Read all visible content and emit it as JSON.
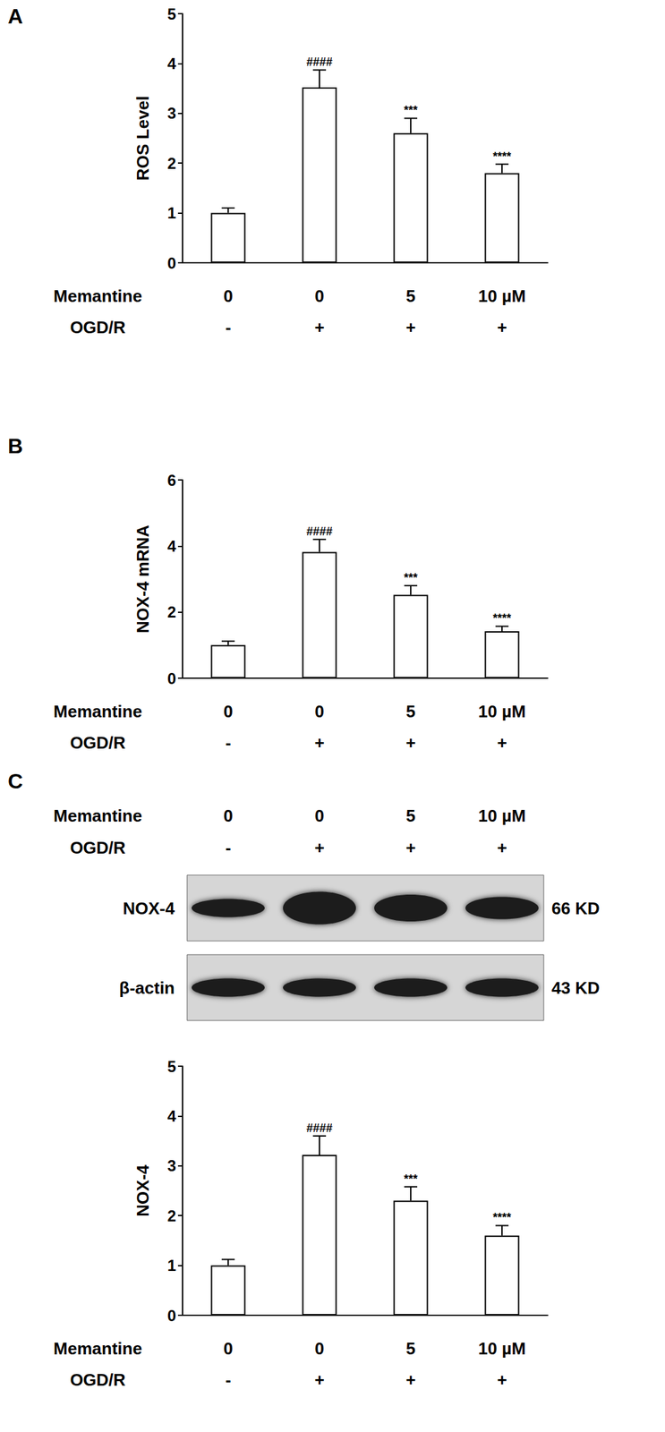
{
  "chart_data": [
    {
      "type": "bar",
      "panel": "A",
      "y_label": "ROS Level",
      "x_rows": [
        {
          "label": "Memantine",
          "values": [
            "0",
            "0",
            "5",
            "10 µM"
          ]
        },
        {
          "label": "OGD/R",
          "values": [
            "-",
            "+",
            "+",
            "+"
          ]
        }
      ],
      "values": [
        1.0,
        3.52,
        2.6,
        1.8
      ],
      "errors": [
        0.1,
        0.35,
        0.3,
        0.18
      ],
      "annotations": [
        null,
        "####",
        "***",
        "****"
      ],
      "color": "#ffffff",
      "ylim": [
        0,
        5
      ],
      "yticks": [
        0,
        1,
        2,
        3,
        4,
        5
      ],
      "grid": false
    },
    {
      "type": "bar",
      "panel": "B",
      "y_label": "NOX-4 mRNA",
      "x_rows": [
        {
          "label": "Memantine",
          "values": [
            "0",
            "0",
            "5",
            "10 µM"
          ]
        },
        {
          "label": "OGD/R",
          "values": [
            "-",
            "+",
            "+",
            "+"
          ]
        }
      ],
      "values": [
        1.0,
        3.82,
        2.52,
        1.42
      ],
      "errors": [
        0.12,
        0.38,
        0.28,
        0.15
      ],
      "annotations": [
        null,
        "####",
        "***",
        "****"
      ],
      "color": "#ffffff",
      "ylim": [
        0,
        6
      ],
      "yticks": [
        0,
        2,
        4,
        6
      ],
      "grid": false
    },
    {
      "type": "bar",
      "panel": "C",
      "y_label": "NOX-4",
      "x_rows": [
        {
          "label": "Memantine",
          "values": [
            "0",
            "0",
            "5",
            "10 µM"
          ]
        },
        {
          "label": "OGD/R",
          "values": [
            "-",
            "+",
            "+",
            "+"
          ]
        }
      ],
      "values": [
        1.0,
        3.22,
        2.3,
        1.6
      ],
      "errors": [
        0.12,
        0.38,
        0.28,
        0.2
      ],
      "annotations": [
        null,
        "####",
        "***",
        "****"
      ],
      "color": "#ffffff",
      "ylim": [
        0,
        5
      ],
      "yticks": [
        0,
        1,
        2,
        3,
        4,
        5
      ],
      "grid": false,
      "blot": {
        "lanes": [
          {
            "label": "NOX-4",
            "mw": "66 KD"
          },
          {
            "label": "β-actin",
            "mw": "43 KD"
          }
        ]
      }
    }
  ]
}
